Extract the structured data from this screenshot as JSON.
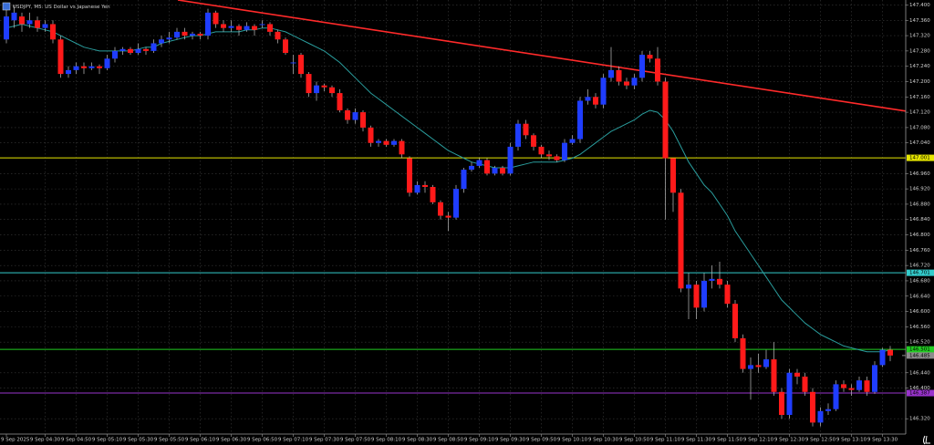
{
  "chart_data": {
    "type": "candlestick",
    "title": "USDJPY, M5: US Dollar vs Japanese Yen",
    "categories": [
      "9 Sep 2025",
      null,
      null,
      null,
      null,
      "9 Sep 04:30",
      null,
      null,
      null,
      "9 Sep 04:50",
      null,
      null,
      null,
      "9 Sep 05:10",
      null,
      null,
      null,
      "9 Sep 05:30",
      null,
      null,
      null,
      "9 Sep 05:50",
      null,
      null,
      null,
      "9 Sep 06:10",
      null,
      null,
      null,
      "9 Sep 06:30",
      null,
      null,
      null,
      "9 Sep 06:50",
      null,
      null,
      null,
      "9 Sep 07:10",
      null,
      null,
      null,
      "9 Sep 07:30",
      null,
      null,
      null,
      "9 Sep 07:50",
      null,
      null,
      null,
      "9 Sep 08:10",
      null,
      null,
      null,
      "9 Sep 08:30",
      null,
      null,
      null,
      "9 Sep 08:50",
      null,
      null,
      null,
      "9 Sep 09:10",
      null,
      null,
      null,
      "9 Sep 09:30",
      null,
      null,
      null,
      "9 Sep 09:50",
      null,
      null,
      null,
      "9 Sep 10:10",
      null,
      null,
      null,
      "9 Sep 10:30",
      null,
      null,
      null,
      "9 Sep 10:50",
      null,
      null,
      null,
      "9 Sep 11:10",
      null,
      null,
      null,
      "9 Sep 11:30",
      null,
      null,
      null,
      "9 Sep 11:50",
      null,
      null,
      null,
      "9 Sep 12:10",
      null,
      null,
      null,
      "9 Sep 12:30",
      null,
      null,
      null,
      "9 Sep 12:50",
      null,
      null,
      null,
      "9 Sep 13:10",
      null,
      null,
      null,
      "9 Sep 13:30",
      null
    ],
    "open": [
      147.31,
      147.36,
      147.37,
      147.35,
      147.36,
      147.34,
      147.35,
      147.31,
      147.22,
      147.23,
      147.24,
      147.235,
      147.24,
      147.235,
      147.26,
      147.28,
      147.285,
      147.275,
      147.285,
      147.28,
      147.3,
      147.31,
      147.315,
      147.33,
      147.32,
      147.325,
      147.32,
      147.38,
      147.35,
      147.34,
      147.345,
      147.335,
      147.345,
      147.35,
      147.35,
      147.33,
      147.31,
      147.25,
      147.27,
      147.22,
      147.17,
      147.19,
      147.185,
      147.17,
      147.125,
      147.1,
      147.12,
      147.08,
      147.04,
      147.045,
      147.035,
      147.045,
      147.0,
      146.91,
      146.93,
      146.925,
      146.885,
      146.85,
      146.845,
      146.92,
      146.97,
      146.98,
      146.995,
      146.96,
      146.975,
      146.96,
      147.03,
      147.09,
      147.06,
      147.03,
      147.01,
      147.005,
      146.995,
      147.04,
      147.05,
      147.15,
      147.16,
      147.14,
      147.21,
      147.23,
      147.2,
      147.19,
      147.21,
      147.27,
      147.26,
      147.2,
      147.0,
      146.91,
      146.66,
      146.67,
      146.61,
      146.68,
      146.685,
      146.67,
      146.62,
      146.53,
      146.45,
      146.46,
      146.455,
      146.475,
      146.39,
      146.33,
      146.44,
      146.43,
      146.39,
      146.31,
      146.34,
      146.345,
      146.41,
      146.4,
      146.395,
      146.42,
      146.39,
      146.46,
      146.5
    ],
    "high": [
      147.39,
      147.4,
      147.38,
      147.38,
      147.37,
      147.36,
      147.36,
      147.32,
      147.24,
      147.25,
      147.25,
      147.25,
      147.245,
      147.27,
      147.29,
      147.29,
      147.29,
      147.3,
      147.29,
      147.31,
      147.32,
      147.33,
      147.34,
      147.34,
      147.33,
      147.33,
      147.39,
      147.385,
      147.36,
      147.36,
      147.35,
      147.355,
      147.35,
      147.36,
      147.355,
      147.335,
      147.315,
      147.27,
      147.275,
      147.225,
      147.2,
      147.195,
      147.19,
      147.18,
      147.13,
      147.13,
      147.125,
      147.085,
      147.05,
      147.05,
      147.05,
      147.05,
      147.005,
      146.94,
      146.94,
      146.93,
      146.89,
      146.86,
      146.93,
      146.975,
      146.99,
      147.0,
      147.0,
      146.98,
      146.98,
      147.04,
      147.1,
      147.1,
      147.065,
      147.035,
      147.02,
      147.01,
      147.05,
      147.06,
      147.16,
      147.18,
      147.17,
      147.22,
      147.29,
      147.24,
      147.21,
      147.22,
      147.28,
      147.28,
      147.29,
      147.21,
      147.0,
      146.92,
      146.7,
      146.68,
      146.7,
      146.72,
      146.73,
      146.68,
      146.63,
      146.54,
      146.48,
      146.49,
      146.5,
      146.52,
      146.4,
      146.45,
      146.45,
      146.44,
      146.4,
      146.35,
      146.36,
      146.42,
      146.42,
      146.41,
      146.43,
      146.43,
      146.47,
      146.505,
      146.51
    ],
    "low": [
      147.3,
      147.34,
      147.33,
      147.34,
      147.33,
      147.33,
      147.3,
      147.21,
      147.21,
      147.22,
      147.22,
      147.23,
      147.22,
      147.23,
      147.25,
      147.27,
      147.27,
      147.27,
      147.27,
      147.275,
      147.29,
      147.3,
      147.31,
      147.31,
      147.31,
      147.31,
      147.31,
      147.34,
      147.33,
      147.33,
      147.32,
      147.33,
      147.32,
      147.34,
      147.32,
      147.3,
      147.27,
      147.22,
      147.21,
      147.16,
      147.15,
      147.175,
      147.16,
      147.12,
      147.09,
      147.09,
      147.07,
      147.03,
      147.03,
      147.03,
      147.03,
      147.0,
      146.9,
      146.905,
      146.91,
      146.88,
      146.84,
      146.81,
      146.84,
      146.91,
      146.965,
      146.975,
      146.955,
      146.955,
      146.955,
      146.955,
      147.02,
      147.05,
      147.02,
      147.0,
      146.995,
      146.99,
      146.99,
      147.035,
      147.04,
      147.14,
      147.13,
      147.13,
      147.2,
      147.19,
      147.18,
      147.18,
      147.2,
      147.25,
      147.19,
      146.84,
      146.86,
      146.65,
      146.58,
      146.58,
      146.6,
      146.66,
      146.66,
      146.61,
      146.52,
      146.44,
      146.37,
      146.44,
      146.45,
      146.38,
      146.32,
      146.32,
      146.41,
      146.38,
      146.3,
      146.3,
      146.33,
      146.34,
      146.39,
      146.38,
      146.39,
      146.38,
      146.385,
      146.455,
      146.47
    ],
    "close": [
      147.37,
      147.38,
      147.35,
      147.36,
      147.34,
      147.35,
      147.31,
      147.22,
      147.23,
      147.24,
      147.235,
      147.24,
      147.235,
      147.26,
      147.28,
      147.285,
      147.275,
      147.285,
      147.28,
      147.3,
      147.31,
      147.315,
      147.33,
      147.32,
      147.325,
      147.32,
      147.38,
      147.35,
      147.34,
      147.345,
      147.335,
      147.345,
      147.335,
      147.35,
      147.33,
      147.31,
      147.275,
      147.25,
      147.22,
      147.17,
      147.19,
      147.185,
      147.17,
      147.125,
      147.1,
      147.12,
      147.08,
      147.04,
      147.045,
      147.035,
      147.045,
      147.01,
      146.91,
      146.93,
      146.925,
      146.885,
      146.85,
      146.845,
      146.92,
      146.97,
      146.98,
      146.995,
      146.96,
      146.975,
      146.96,
      147.03,
      147.09,
      147.06,
      147.03,
      147.01,
      147.005,
      146.995,
      147.04,
      147.05,
      147.15,
      147.16,
      147.14,
      147.21,
      147.23,
      147.2,
      147.19,
      147.21,
      147.27,
      147.26,
      147.2,
      147.0,
      146.91,
      146.66,
      146.67,
      146.61,
      146.68,
      146.685,
      146.67,
      146.62,
      146.53,
      146.45,
      146.46,
      146.455,
      146.475,
      146.39,
      146.33,
      146.44,
      146.43,
      146.39,
      146.31,
      146.34,
      146.345,
      146.41,
      146.4,
      146.395,
      146.42,
      146.39,
      146.46,
      146.5,
      146.485
    ],
    "up_color": "#1f3dff",
    "down_color": "#ff1a1a",
    "wick_color": "#bfbfbf",
    "ma": {
      "color": "#2a9d9d",
      "values": [
        147.34,
        147.345,
        147.35,
        147.345,
        147.34,
        147.335,
        147.33,
        147.32,
        147.31,
        147.3,
        147.29,
        147.285,
        147.28,
        147.28,
        147.28,
        147.28,
        147.28,
        147.285,
        147.29,
        147.29,
        147.3,
        147.305,
        147.31,
        147.315,
        147.32,
        147.32,
        147.325,
        147.33,
        147.33,
        147.33,
        147.33,
        147.335,
        147.335,
        147.34,
        147.34,
        147.335,
        147.33,
        147.32,
        147.31,
        147.3,
        147.29,
        147.28,
        147.265,
        147.25,
        147.23,
        147.21,
        147.19,
        147.17,
        147.155,
        147.14,
        147.125,
        147.11,
        147.095,
        147.08,
        147.065,
        147.05,
        147.035,
        147.02,
        147.01,
        147.0,
        146.99,
        146.985,
        146.98,
        146.975,
        146.975,
        146.975,
        146.98,
        146.985,
        146.99,
        146.99,
        146.99,
        146.99,
        146.995,
        147.0,
        147.01,
        147.025,
        147.04,
        147.055,
        147.07,
        147.08,
        147.09,
        147.1,
        147.115,
        147.125,
        147.12,
        147.1,
        147.07,
        147.03,
        146.99,
        146.96,
        146.93,
        146.91,
        146.88,
        146.85,
        146.81,
        146.78,
        146.75,
        146.72,
        146.69,
        146.66,
        146.63,
        146.61,
        146.59,
        146.57,
        146.555,
        146.54,
        146.53,
        146.52,
        146.51,
        146.505,
        146.5,
        146.495,
        146.495,
        146.495,
        146.5
      ]
    },
    "trend_line": {
      "color": "#ff2a2a",
      "values": [
        147.413,
        147.123
      ]
    },
    "levels": [
      {
        "value": 147.001,
        "label": "147.001",
        "color": "#e6e600"
      },
      {
        "value": 146.701,
        "label": "146.701",
        "color": "#33cccc"
      },
      {
        "value": 146.501,
        "label": "146.501",
        "color": "#22cc22"
      },
      {
        "value": 146.387,
        "label": "146.387",
        "color": "#9933cc"
      }
    ],
    "bid": {
      "value": 146.485,
      "label": "146.485",
      "color": "#8c8c8c"
    },
    "ylim": [
      146.28,
      147.413
    ],
    "yticks": [
      {
        "value": 147.4,
        "label": "147.400"
      },
      {
        "value": 147.36,
        "label": "147.360"
      },
      {
        "value": 147.32,
        "label": "147.320"
      },
      {
        "value": 147.28,
        "label": "147.280"
      },
      {
        "value": 147.24,
        "label": "147.240"
      },
      {
        "value": 147.2,
        "label": "147.200"
      },
      {
        "value": 147.16,
        "label": "147.160"
      },
      {
        "value": 147.12,
        "label": "147.120"
      },
      {
        "value": 147.08,
        "label": "147.080"
      },
      {
        "value": 147.04,
        "label": "147.040"
      },
      {
        "value": 146.96,
        "label": "146.960"
      },
      {
        "value": 146.92,
        "label": "146.920"
      },
      {
        "value": 146.88,
        "label": "146.880"
      },
      {
        "value": 146.84,
        "label": "146.840"
      },
      {
        "value": 146.8,
        "label": "146.800"
      },
      {
        "value": 146.76,
        "label": "146.760"
      },
      {
        "value": 146.72,
        "label": "146.720"
      },
      {
        "value": 146.68,
        "label": "146.680"
      },
      {
        "value": 146.64,
        "label": "146.640"
      },
      {
        "value": 146.6,
        "label": "146.600"
      },
      {
        "value": 146.56,
        "label": "146.560"
      },
      {
        "value": 146.52,
        "label": "146.520"
      },
      {
        "value": 146.44,
        "label": "146.440"
      },
      {
        "value": 146.4,
        "label": "146.400"
      },
      {
        "value": 146.32,
        "label": "146.320"
      }
    ],
    "grid": true
  }
}
